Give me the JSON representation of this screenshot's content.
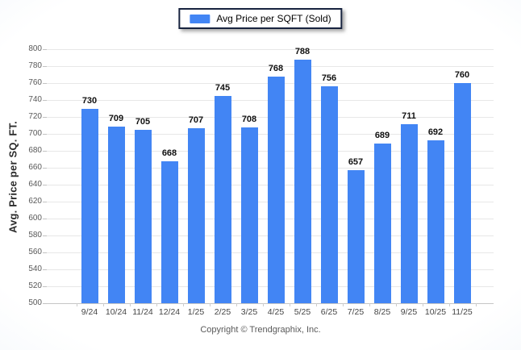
{
  "legend": {
    "label": "Avg Price per SQFT (Sold)",
    "swatch_color": "#4285f4",
    "border_color": "#17233f"
  },
  "footer": {
    "copyright": "Copyright © Trendgraphix, Inc."
  },
  "chart_data": {
    "type": "bar",
    "title": "",
    "xlabel": "",
    "ylabel": "Avg. Price per SQ. FT.",
    "series_name": "Avg Price per SQFT (Sold)",
    "categories": [
      "9/24",
      "10/24",
      "11/24",
      "12/24",
      "1/25",
      "2/25",
      "3/25",
      "4/25",
      "5/25",
      "6/25",
      "7/25",
      "8/25",
      "9/25",
      "10/25",
      "11/25"
    ],
    "values": [
      730,
      709,
      705,
      668,
      707,
      745,
      708,
      768,
      788,
      756,
      657,
      689,
      711,
      692,
      760
    ],
    "ylim": [
      500,
      800
    ],
    "yticks": [
      500,
      520,
      540,
      560,
      580,
      600,
      620,
      640,
      660,
      680,
      700,
      720,
      740,
      760,
      780,
      800
    ],
    "grid": true,
    "legend_position": "top-center",
    "bar_color": "#4285f4",
    "value_labels_shown": true
  }
}
